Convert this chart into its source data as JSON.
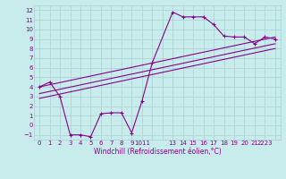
{
  "xlabel": "Windchill (Refroidissement éolien,°C)",
  "background_color": "#c8ecec",
  "grid_color": "#b0d8d8",
  "line_color": "#880088",
  "xlim": [
    -0.5,
    23.5
  ],
  "ylim": [
    -1.5,
    12.5
  ],
  "yticks": [
    -1,
    0,
    1,
    2,
    3,
    4,
    5,
    6,
    7,
    8,
    9,
    10,
    11,
    12
  ],
  "xtick_positions": [
    0,
    1,
    2,
    3,
    4,
    5,
    6,
    7,
    8,
    9,
    10,
    11,
    13,
    14,
    15,
    16,
    17,
    18,
    19,
    20,
    21,
    22
  ],
  "xtick_labels": [
    "0",
    "1",
    "2",
    "3",
    "4",
    "5",
    "6",
    "7",
    "8",
    "9",
    "1011",
    "",
    "13",
    "14",
    "15",
    "16",
    "17",
    "18",
    "19",
    "20",
    "21",
    "2223"
  ],
  "series": [
    [
      0,
      4.0
    ],
    [
      1,
      4.5
    ],
    [
      2,
      3.0
    ],
    [
      3,
      -1.0
    ],
    [
      4,
      -1.0
    ],
    [
      5,
      -1.2
    ],
    [
      6,
      1.2
    ],
    [
      7,
      1.3
    ],
    [
      8,
      1.3
    ],
    [
      9,
      -0.8
    ],
    [
      10,
      2.5
    ],
    [
      11,
      6.5
    ],
    [
      13,
      11.8
    ],
    [
      14,
      11.3
    ],
    [
      15,
      11.3
    ],
    [
      16,
      11.3
    ],
    [
      17,
      10.5
    ],
    [
      18,
      9.3
    ],
    [
      19,
      9.2
    ],
    [
      20,
      9.2
    ],
    [
      21,
      8.5
    ],
    [
      22,
      9.2
    ],
    [
      23,
      9.0
    ]
  ],
  "line2": [
    [
      0,
      4.0
    ],
    [
      23,
      9.2
    ]
  ],
  "line3": [
    [
      0,
      3.3
    ],
    [
      23,
      8.5
    ]
  ],
  "line4": [
    [
      0,
      2.8
    ],
    [
      23,
      8.0
    ]
  ]
}
